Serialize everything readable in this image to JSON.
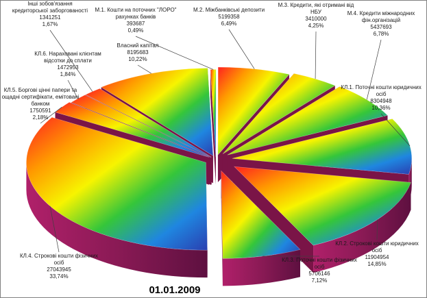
{
  "chart_data": {
    "type": "pie",
    "title": "01.01.2009",
    "slices": [
      {
        "lines": [
          "М.1. Кошти на поточних \"ЛОРО\"",
          "рахунках банків"
        ],
        "value": 393687,
        "value_text": "393687",
        "percent_text": "0,49%",
        "percent": 0.49
      },
      {
        "lines": [
          "М.2. Міжбанківські депозити"
        ],
        "value": 5199358,
        "value_text": "5199358",
        "percent_text": "6,49%",
        "percent": 6.49
      },
      {
        "lines": [
          "М.3. Кредити, які отримані від",
          "НБУ"
        ],
        "value": 3410000,
        "value_text": "3410000",
        "percent_text": "4,25%",
        "percent": 4.25
      },
      {
        "lines": [
          "М.4. Кредити міжнародних",
          "фін.організацій"
        ],
        "value": 5437693,
        "value_text": "5437693",
        "percent_text": "6,78%",
        "percent": 6.78
      },
      {
        "lines": [
          "КЛ.1. Поточні кошти юридичних",
          "осіб"
        ],
        "value": 8304948,
        "value_text": "8304948",
        "percent_text": "10,36%",
        "percent": 10.36
      },
      {
        "lines": [
          "КЛ.2. Строкові кошти юридичних",
          "осіб"
        ],
        "value": 11904954,
        "value_text": "11904954",
        "percent_text": "14,85%",
        "percent": 14.85
      },
      {
        "lines": [
          "КЛ.3. Поточні кошти фізичних",
          "осіб"
        ],
        "value": 5706146,
        "value_text": "5706146",
        "percent_text": "7,12%",
        "percent": 7.12
      },
      {
        "lines": [
          "КЛ.4. Строкові кошти фізичних",
          "осіб"
        ],
        "value": 27043945,
        "value_text": "27043945",
        "percent_text": "33,74%",
        "percent": 33.74
      },
      {
        "lines": [
          "КЛ.5. Боргові цінні папери та",
          "ощадні сертифікати, емітовані",
          "банком"
        ],
        "value": 1750591,
        "value_text": "1750591",
        "percent_text": "2,18%",
        "percent": 2.18
      },
      {
        "lines": [
          "КЛ.6. Нараховані клієнтам",
          "відсотки до сплати"
        ],
        "value": 1472953,
        "value_text": "1472953",
        "percent_text": "1,84%",
        "percent": 1.84
      },
      {
        "lines": [
          "Інші зобов'язання",
          "кредиторської заборгованості"
        ],
        "value": 1341251,
        "value_text": "1341251",
        "percent_text": "1,67%",
        "percent": 1.67
      },
      {
        "lines": [
          "Власний капітал"
        ],
        "value": 8195683,
        "value_text": "8195683",
        "percent_text": "10,22%",
        "percent": 10.22
      }
    ],
    "exploded": true,
    "style": "3d-gradient"
  }
}
